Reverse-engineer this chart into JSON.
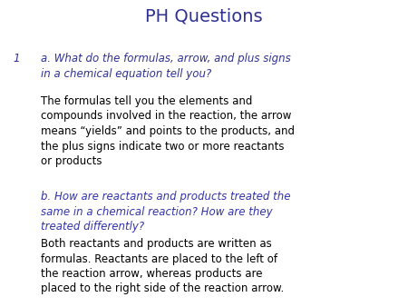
{
  "title": "PH Questions",
  "title_color": "#2E3192",
  "title_fontsize": 14,
  "background_color": "#FFFFFF",
  "number_label": "1",
  "number_color": "#2E3192",
  "number_fontsize": 8.5,
  "question_a_color": "#2E3192",
  "question_a_fontsize": 8.5,
  "answer_a_color": "#000000",
  "answer_a_fontsize": 8.5,
  "question_b_color": "#3333AA",
  "question_b_fontsize": 8.5,
  "answer_b_color": "#000000",
  "answer_b_fontsize": 8.5,
  "question_a": "a. What do the formulas, arrow, and plus signs\nin a chemical equation tell you?",
  "answer_a": "The formulas tell you the elements and\ncompounds involved in the reaction, the arrow\nmeans “yields” and points to the products, and\nthe plus signs indicate two or more reactants\nor products",
  "question_b": "b. How are reactants and products treated the\nsame in a chemical reaction? How are they\ntreated differently?",
  "answer_b": "Both reactants and products are written as\nformulas. Reactants are placed to the left of\nthe reaction arrow, whereas products are\nplaced to the right side of the reaction arrow."
}
